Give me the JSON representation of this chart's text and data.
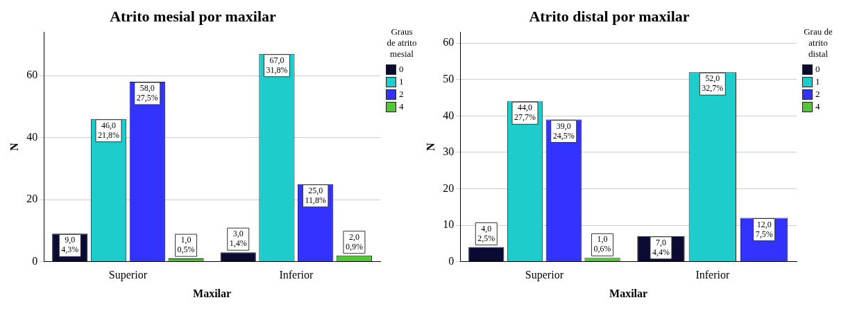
{
  "chart_data": [
    {
      "type": "bar",
      "title": "Atrito mesial por maxilar",
      "xlabel": "Maxilar",
      "ylabel": "N",
      "legend_title": "Graus de atrito mesial",
      "legend": "right",
      "grid": "y",
      "categories": [
        "Superior",
        "Inferior"
      ],
      "ylim": [
        0,
        74
      ],
      "yticks": [
        0,
        20,
        40,
        60
      ],
      "series": [
        {
          "name": "0",
          "color": "#0a0a33",
          "values": [
            9,
            3
          ],
          "value_labels": [
            "9,0\n4,3%",
            "3,0\n1,4%"
          ]
        },
        {
          "name": "1",
          "color": "#1fcccc",
          "values": [
            46,
            67
          ],
          "value_labels": [
            "46,0\n21,8%",
            "67,0\n31,8%"
          ]
        },
        {
          "name": "2",
          "color": "#3333ff",
          "values": [
            58,
            25
          ],
          "value_labels": [
            "58,0\n27,5%",
            "25,0\n11,8%"
          ]
        },
        {
          "name": "4",
          "color": "#55c43a",
          "values": [
            1,
            2
          ],
          "value_labels": [
            "1,0\n0,5%",
            "2,0\n0,9%"
          ]
        }
      ]
    },
    {
      "type": "bar",
      "title": "Atrito distal por maxilar",
      "xlabel": "Maxilar",
      "ylabel": "N",
      "legend_title": "Grau de atrito distal",
      "legend": "right",
      "grid": "y",
      "categories": [
        "Superior",
        "Inferior"
      ],
      "ylim": [
        0,
        63
      ],
      "yticks": [
        0,
        10,
        20,
        30,
        40,
        50,
        60
      ],
      "series": [
        {
          "name": "0",
          "color": "#0a0a33",
          "values": [
            4,
            7
          ],
          "value_labels": [
            "4,0\n2,5%",
            "7,0\n4,4%"
          ]
        },
        {
          "name": "1",
          "color": "#1fcccc",
          "values": [
            44,
            52
          ],
          "value_labels": [
            "44,0\n27,7%",
            "52,0\n32,7%"
          ]
        },
        {
          "name": "2",
          "color": "#3333ff",
          "values": [
            39,
            12
          ],
          "value_labels": [
            "39,0\n24,5%",
            "12,0\n7,5%"
          ]
        },
        {
          "name": "4",
          "color": "#55c43a",
          "values": [
            1,
            null
          ],
          "value_labels": [
            "1,0\n0,6%",
            null
          ]
        }
      ]
    }
  ]
}
